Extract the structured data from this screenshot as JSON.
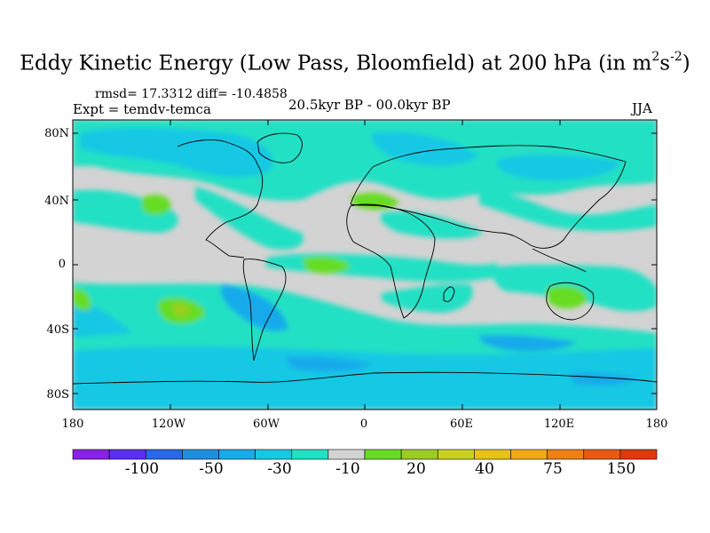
{
  "title": {
    "main": "Eddy Kinetic Energy (Low Pass, Bloomfield) at 200 hPa (in m",
    "sup1": "2",
    "mid": "s",
    "sup2": "-2",
    "close": ")"
  },
  "stats": {
    "text": "rmsd= 17.3312 diff= -10.4858"
  },
  "expt": {
    "text": "Expt = temdv-temca"
  },
  "period": {
    "text": "20.5kyr BP - 00.0kyr BP"
  },
  "season": {
    "text": "JJA"
  },
  "map": {
    "lat_ticks": [
      "80N",
      "40N",
      "0",
      "40S",
      "80S"
    ],
    "lon_ticks": [
      "180",
      "120W",
      "60W",
      "0",
      "60E",
      "120E",
      "180"
    ],
    "colors": {
      "gray": "#d3d3d3",
      "teal": "#22e0c4",
      "cyan": "#16c8e4",
      "lightblue": "#18aaea",
      "blue": "#1e8fe0",
      "green": "#66dd22",
      "yellowgreen": "#9ccc22",
      "coast": "#000000"
    }
  },
  "colorbar": {
    "labels": [
      "-100",
      "-50",
      "-30",
      "-10",
      "20",
      "40",
      "75",
      "150"
    ],
    "colors": [
      "#8a1fe8",
      "#5a2ff0",
      "#2868ea",
      "#1e8fe0",
      "#18aaea",
      "#16c8e4",
      "#22e0c4",
      "#d3d3d3",
      "#66dd22",
      "#9ccc22",
      "#c8d21c",
      "#e8c018",
      "#f4a814",
      "#f08012",
      "#ea5a10",
      "#e03a0a"
    ]
  }
}
